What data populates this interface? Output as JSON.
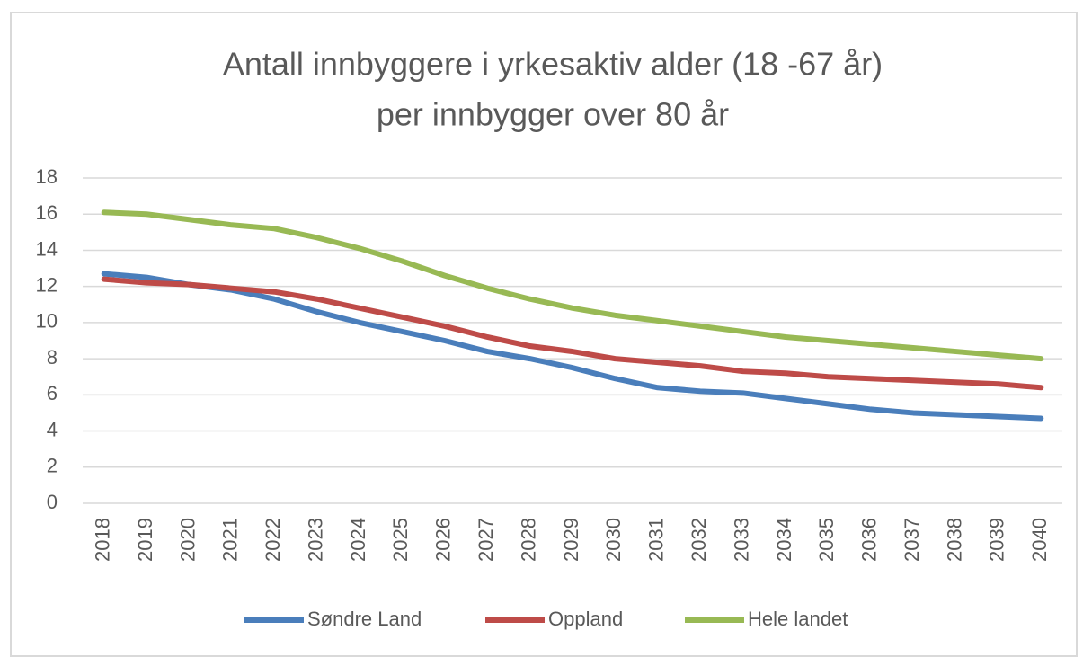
{
  "chart_data": {
    "type": "line",
    "title": [
      "Antall innbyggere i yrkesaktiv alder (18 -67 år)",
      "per innbygger over 80 år"
    ],
    "categories": [
      "2018",
      "2019",
      "2020",
      "2021",
      "2022",
      "2023",
      "2024",
      "2025",
      "2026",
      "2027",
      "2028",
      "2029",
      "2030",
      "2031",
      "2032",
      "2033",
      "2034",
      "2035",
      "2036",
      "2037",
      "2038",
      "2039",
      "2040"
    ],
    "series": [
      {
        "name": "Søndre Land",
        "color": "#4a7ebb",
        "values": [
          12.7,
          12.5,
          12.1,
          11.8,
          11.3,
          10.6,
          10.0,
          9.5,
          9.0,
          8.4,
          8.0,
          7.5,
          6.9,
          6.4,
          6.2,
          6.1,
          5.8,
          5.5,
          5.2,
          5.0,
          4.9,
          4.8,
          4.7
        ]
      },
      {
        "name": "Oppland",
        "color": "#be4b48",
        "values": [
          12.4,
          12.2,
          12.1,
          11.9,
          11.7,
          11.3,
          10.8,
          10.3,
          9.8,
          9.2,
          8.7,
          8.4,
          8.0,
          7.8,
          7.6,
          7.3,
          7.2,
          7.0,
          6.9,
          6.8,
          6.7,
          6.6,
          6.4
        ]
      },
      {
        "name": "Hele landet",
        "color": "#98b954",
        "values": [
          16.1,
          16.0,
          15.7,
          15.4,
          15.2,
          14.7,
          14.1,
          13.4,
          12.6,
          11.9,
          11.3,
          10.8,
          10.4,
          10.1,
          9.8,
          9.5,
          9.2,
          9.0,
          8.8,
          8.6,
          8.4,
          8.2,
          8.0
        ]
      }
    ],
    "ylim": [
      0,
      18
    ],
    "yticks": [
      0,
      2,
      4,
      6,
      8,
      10,
      12,
      14,
      16,
      18
    ],
    "grid": true,
    "legend": "bottom"
  }
}
